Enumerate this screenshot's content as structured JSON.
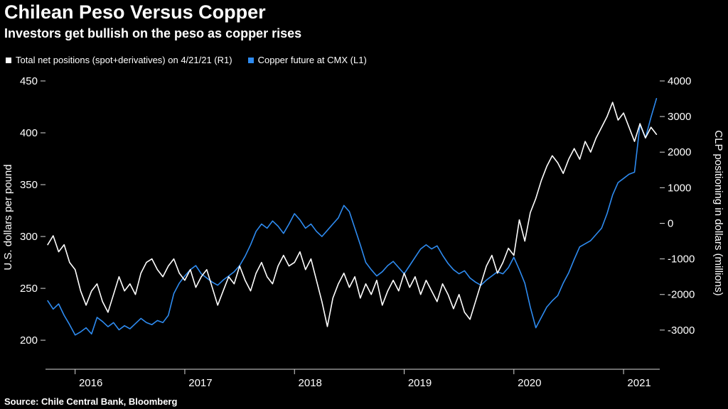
{
  "header": {
    "title": "Chilean Peso Versus Copper",
    "subtitle": "Investors get bullish on the peso as copper rises"
  },
  "source": "Source:  Chile Central Bank, Bloomberg",
  "colors": {
    "background": "#000000",
    "text": "#ffffff",
    "axis": "#d9d9d9",
    "copper_blue": "#2E8BF0",
    "positions_white": "#ffffff"
  },
  "chart_data": {
    "type": "line",
    "title": "Chilean Peso Versus Copper",
    "subtitle": "Investors get bullish on the peso as copper rises",
    "x_domain": [
      2015.73,
      2021.33
    ],
    "x_ticks": [
      2016,
      2017,
      2018,
      2019,
      2020,
      2021
    ],
    "x": [
      2015.75,
      2015.8,
      2015.85,
      2015.9,
      2015.95,
      2016,
      2016.05,
      2016.1,
      2016.15,
      2016.2,
      2016.25,
      2016.3,
      2016.35,
      2016.4,
      2016.45,
      2016.5,
      2016.55,
      2016.6,
      2016.65,
      2016.7,
      2016.75,
      2016.8,
      2016.85,
      2016.9,
      2016.95,
      2017,
      2017.05,
      2017.1,
      2017.15,
      2017.2,
      2017.25,
      2017.3,
      2017.35,
      2017.4,
      2017.45,
      2017.5,
      2017.55,
      2017.6,
      2017.65,
      2017.7,
      2017.75,
      2017.8,
      2017.85,
      2017.9,
      2017.95,
      2018,
      2018.05,
      2018.1,
      2018.15,
      2018.2,
      2018.25,
      2018.3,
      2018.35,
      2018.4,
      2018.45,
      2018.5,
      2018.55,
      2018.6,
      2018.65,
      2018.7,
      2018.75,
      2018.8,
      2018.85,
      2018.9,
      2018.95,
      2019,
      2019.05,
      2019.1,
      2019.15,
      2019.2,
      2019.25,
      2019.3,
      2019.35,
      2019.4,
      2019.45,
      2019.5,
      2019.55,
      2019.6,
      2019.65,
      2019.7,
      2019.75,
      2019.8,
      2019.85,
      2019.9,
      2019.95,
      2020,
      2020.05,
      2020.1,
      2020.15,
      2020.2,
      2020.25,
      2020.3,
      2020.35,
      2020.4,
      2020.45,
      2020.5,
      2020.55,
      2020.6,
      2020.65,
      2020.7,
      2020.75,
      2020.8,
      2020.85,
      2020.9,
      2020.95,
      2021,
      2021.05,
      2021.1,
      2021.15,
      2021.2,
      2021.25,
      2021.3
    ],
    "axis_left": {
      "label": "U.S. dollars per pound",
      "ticks": [
        450,
        400,
        350,
        300,
        250,
        200
      ],
      "domain": [
        172,
        450
      ]
    },
    "axis_right": {
      "label": "CLP positioning in dollars (millions)",
      "ticks": [
        4000,
        3000,
        2000,
        1000,
        0,
        -1000,
        -2000,
        -3000
      ],
      "domain": [
        -4100,
        4000
      ]
    },
    "series": [
      {
        "name": "Total net positions (spot+derivatives) on 4/21/21 (R1)",
        "axis": "right",
        "color": "#ffffff",
        "values": [
          -600,
          -350,
          -800,
          -600,
          -1100,
          -1300,
          -1900,
          -2300,
          -1900,
          -1700,
          -2200,
          -2500,
          -2000,
          -1500,
          -1900,
          -1700,
          -2000,
          -1400,
          -1100,
          -1000,
          -1300,
          -1500,
          -1200,
          -1000,
          -1400,
          -1600,
          -1300,
          -1800,
          -1500,
          -1300,
          -1800,
          -2300,
          -1900,
          -1500,
          -1700,
          -1200,
          -1600,
          -1900,
          -1400,
          -1100,
          -1500,
          -1700,
          -1200,
          -900,
          -1200,
          -1100,
          -800,
          -1300,
          -1000,
          -1600,
          -2200,
          -2900,
          -2100,
          -1700,
          -1400,
          -1800,
          -1500,
          -2100,
          -1700,
          -2000,
          -1600,
          -2300,
          -1900,
          -1600,
          -1900,
          -1400,
          -1800,
          -1500,
          -2000,
          -1600,
          -1900,
          -2200,
          -1700,
          -2000,
          -2400,
          -2000,
          -2500,
          -2700,
          -2200,
          -1700,
          -1200,
          -900,
          -1400,
          -1100,
          -700,
          -900,
          100,
          -500,
          300,
          700,
          1200,
          1600,
          1900,
          1700,
          1400,
          1800,
          2100,
          1800,
          2300,
          2000,
          2400,
          2700,
          3000,
          3400,
          2900,
          3100,
          2700,
          2300,
          2800,
          2400,
          2700,
          2500
        ]
      },
      {
        "name": "Copper future at CMX (L1)",
        "axis": "left",
        "color": "#2E8BF0",
        "values": [
          238,
          230,
          235,
          224,
          215,
          205,
          208,
          212,
          206,
          222,
          218,
          213,
          217,
          210,
          214,
          211,
          216,
          221,
          217,
          215,
          219,
          217,
          224,
          245,
          255,
          262,
          268,
          272,
          264,
          260,
          256,
          253,
          258,
          262,
          266,
          272,
          281,
          292,
          305,
          312,
          308,
          315,
          310,
          303,
          312,
          322,
          316,
          308,
          312,
          305,
          300,
          306,
          312,
          318,
          330,
          324,
          308,
          292,
          275,
          268,
          262,
          266,
          272,
          276,
          270,
          264,
          272,
          280,
          288,
          292,
          288,
          291,
          282,
          274,
          268,
          264,
          267,
          260,
          256,
          253,
          258,
          262,
          266,
          264,
          270,
          280,
          268,
          255,
          232,
          212,
          222,
          232,
          238,
          243,
          255,
          265,
          278,
          290,
          293,
          296,
          302,
          308,
          322,
          340,
          352,
          356,
          360,
          362,
          408,
          395,
          415,
          433
        ]
      }
    ],
    "legend_position": "top-left",
    "grid": false
  }
}
